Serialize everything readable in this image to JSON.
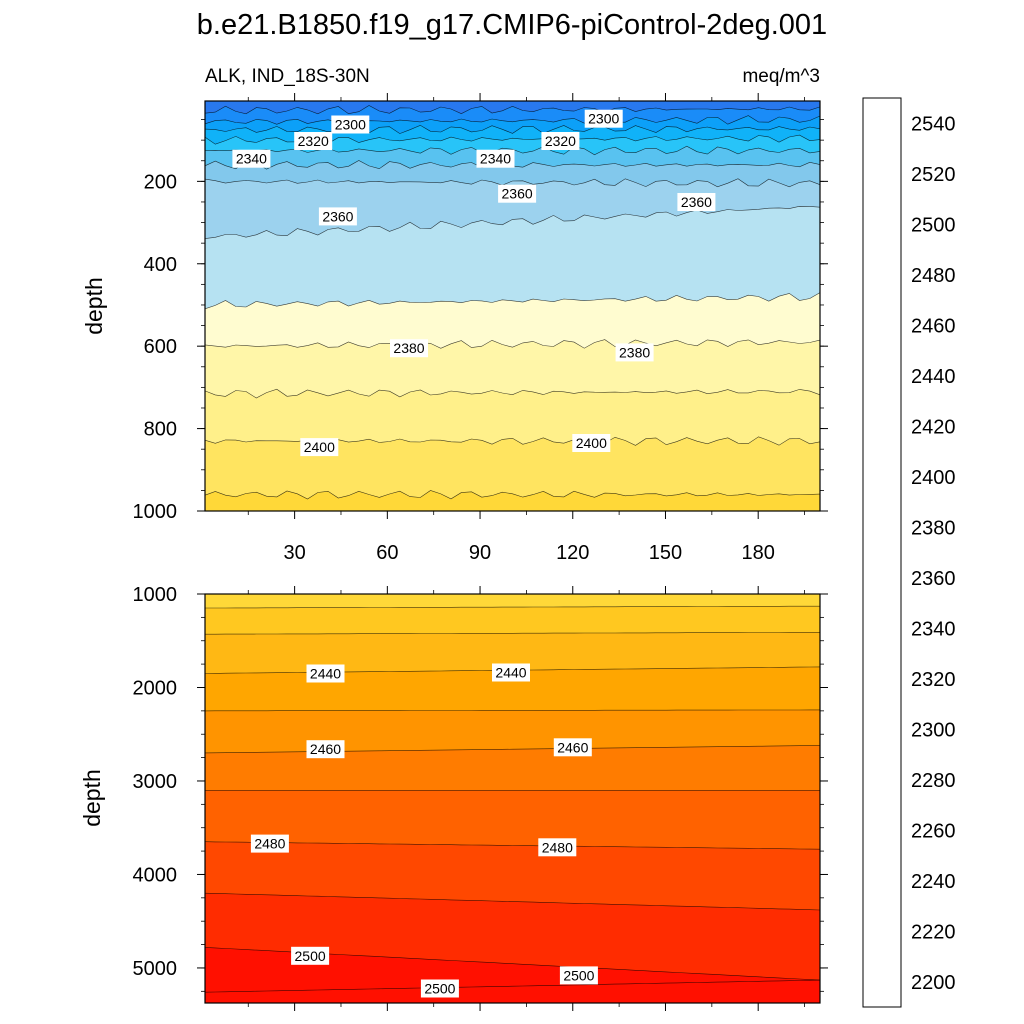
{
  "title": "b.e21.B1850.f19_g17.CMIP6-piControl-2deg.001",
  "subtitle_left": "ALK, IND_18S-30N",
  "subtitle_right": "meq/m^3",
  "colorbar": {
    "levels": [
      2200,
      2210,
      2220,
      2230,
      2240,
      2250,
      2260,
      2270,
      2280,
      2290,
      2300,
      2310,
      2320,
      2330,
      2340,
      2350,
      2360,
      2370,
      2380,
      2390,
      2400,
      2410,
      2420,
      2430,
      2440,
      2450,
      2460,
      2470,
      2480,
      2490,
      2500,
      2510,
      2520,
      2530,
      2540,
      2550
    ],
    "labels": [
      "2200",
      "2220",
      "2240",
      "2260",
      "2280",
      "2300",
      "2320",
      "2340",
      "2360",
      "2380",
      "2400",
      "2420",
      "2440",
      "2460",
      "2480",
      "2500",
      "2520",
      "2540"
    ],
    "colors": [
      "#8a2be2",
      "#6a2ae8",
      "#4b1ff0",
      "#2a10f5",
      "#1020ff",
      "#2040f0",
      "#3a5ae0",
      "#3068e0",
      "#2878ee",
      "#1a8cf8",
      "#0ca0f8",
      "#10b2f8",
      "#28c4f8",
      "#58c2f0",
      "#82c8ec",
      "#9cd2ee",
      "#b6e2f2",
      "#fffcd0",
      "#fff6a8",
      "#fff08a",
      "#ffe460",
      "#ffd838",
      "#ffc820",
      "#ffb814",
      "#ffa600",
      "#ff9400",
      "#ff7c00",
      "#ff6200",
      "#ff4800",
      "#ff2c00",
      "#ff1000",
      "#e80000",
      "#d00000",
      "#d43030",
      "#e87070",
      "#fbb2b4"
    ]
  },
  "chart_data": [
    {
      "type": "heatmap",
      "panel": "upper",
      "variable": "ALK",
      "region": "IND_18S-30N",
      "units": "meq/m^3",
      "ylabel": "depth",
      "xlabel": "",
      "xlim": [
        1,
        200
      ],
      "ylim": [
        1000,
        5
      ],
      "y_reversed": true,
      "xticks": [
        30,
        60,
        90,
        120,
        150,
        180
      ],
      "yticks": [
        200,
        400,
        600,
        800,
        1000
      ],
      "contour_interval": 10,
      "contours": [
        {
          "value": 2290,
          "depth_start": 28,
          "depth_end": 24
        },
        {
          "value": 2300,
          "depth_start": 55,
          "depth_end": 50
        },
        {
          "value": 2310,
          "depth_start": 75,
          "depth_end": 72
        },
        {
          "value": 2320,
          "depth_start": 100,
          "depth_end": 95
        },
        {
          "value": 2330,
          "depth_start": 125,
          "depth_end": 125
        },
        {
          "value": 2340,
          "depth_start": 160,
          "depth_end": 160
        },
        {
          "value": 2350,
          "depth_start": 200,
          "depth_end": 205
        },
        {
          "value": 2360,
          "depth_start": 335,
          "depth_end": 260
        },
        {
          "value": 2370,
          "depth_start": 500,
          "depth_end": 480
        },
        {
          "value": 2380,
          "depth_start": 600,
          "depth_end": 590
        },
        {
          "value": 2390,
          "depth_start": 715,
          "depth_end": 710
        },
        {
          "value": 2400,
          "depth_start": 830,
          "depth_end": 830
        },
        {
          "value": 2410,
          "depth_start": 960,
          "depth_end": 960
        }
      ],
      "contour_labels": [
        {
          "text": "2300",
          "x": 48,
          "depth": 62
        },
        {
          "text": "2300",
          "x": 130,
          "depth": 48
        },
        {
          "text": "2320",
          "x": 36,
          "depth": 102
        },
        {
          "text": "2320",
          "x": 116,
          "depth": 102
        },
        {
          "text": "2340",
          "x": 16,
          "depth": 145
        },
        {
          "text": "2340",
          "x": 95,
          "depth": 145
        },
        {
          "text": "2360",
          "x": 44,
          "depth": 285
        },
        {
          "text": "2360",
          "x": 102,
          "depth": 230
        },
        {
          "text": "2360",
          "x": 160,
          "depth": 250
        },
        {
          "text": "2380",
          "x": 67,
          "depth": 605
        },
        {
          "text": "2380",
          "x": 140,
          "depth": 615
        },
        {
          "text": "2400",
          "x": 38,
          "depth": 845
        },
        {
          "text": "2400",
          "x": 126,
          "depth": 835
        }
      ]
    },
    {
      "type": "heatmap",
      "panel": "lower",
      "variable": "ALK",
      "region": "IND_18S-30N",
      "units": "meq/m^3",
      "ylabel": "depth",
      "xlabel": "",
      "xlim": [
        1,
        200
      ],
      "ylim": [
        5375,
        1000
      ],
      "y_reversed": true,
      "yticks": [
        1000,
        2000,
        3000,
        4000,
        5000
      ],
      "contour_interval": 10,
      "contours": [
        {
          "value": 2420,
          "depth_start": 1150,
          "depth_end": 1130
        },
        {
          "value": 2430,
          "depth_start": 1430,
          "depth_end": 1410
        },
        {
          "value": 2440,
          "depth_start": 1850,
          "depth_end": 1780
        },
        {
          "value": 2450,
          "depth_start": 2250,
          "depth_end": 2240
        },
        {
          "value": 2460,
          "depth_start": 2700,
          "depth_end": 2620
        },
        {
          "value": 2470,
          "depth_start": 3100,
          "depth_end": 3100
        },
        {
          "value": 2480,
          "depth_start": 3650,
          "depth_end": 3730
        },
        {
          "value": 2490,
          "depth_start": 4200,
          "depth_end": 4380
        },
        {
          "value": 2500,
          "depth_start": 4780,
          "depth_end": 5130
        },
        {
          "value": 2500,
          "depth_start": 5260,
          "depth_end": 5130
        }
      ],
      "contour_labels": [
        {
          "text": "2440",
          "x": 40,
          "depth": 1850
        },
        {
          "text": "2440",
          "x": 100,
          "depth": 1840
        },
        {
          "text": "2460",
          "x": 40,
          "depth": 2660
        },
        {
          "text": "2460",
          "x": 120,
          "depth": 2640
        },
        {
          "text": "2480",
          "x": 22,
          "depth": 3670
        },
        {
          "text": "2480",
          "x": 115,
          "depth": 3710
        },
        {
          "text": "2500",
          "x": 35,
          "depth": 4870
        },
        {
          "text": "2500",
          "x": 122,
          "depth": 5080
        },
        {
          "text": "2500",
          "x": 77,
          "depth": 5220
        }
      ]
    }
  ]
}
